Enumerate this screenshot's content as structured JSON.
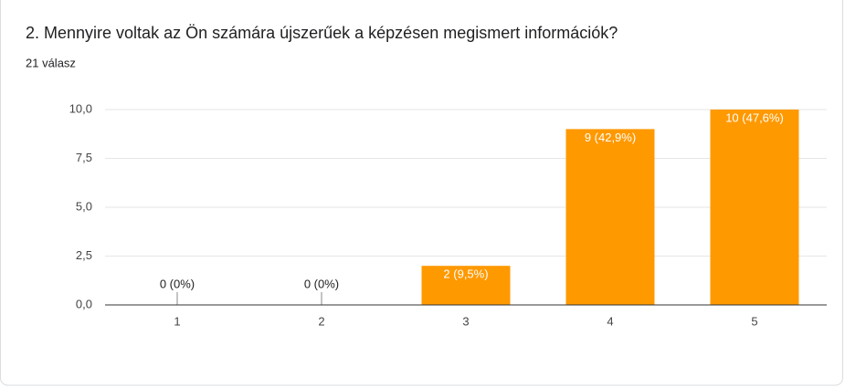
{
  "chart_data": {
    "type": "bar",
    "title": "2. Mennyire voltak az Ön számára újszerűek a képzésen megismert információk?",
    "subtitle": "21 válasz",
    "categories": [
      "1",
      "2",
      "3",
      "4",
      "5"
    ],
    "values": [
      0,
      0,
      2,
      9,
      10
    ],
    "value_labels": [
      "0 (0%)",
      "0 (0%)",
      "2 (9,5%)",
      "9 (42,9%)",
      "10 (47,6%)"
    ],
    "color": "#ff9900",
    "ylim": [
      0,
      10
    ],
    "yticks": [
      {
        "value": 0,
        "label": "0,0"
      },
      {
        "value": 2.5,
        "label": "2,5"
      },
      {
        "value": 5,
        "label": "5,0"
      },
      {
        "value": 7.5,
        "label": "7,5"
      },
      {
        "value": 10,
        "label": "10,0"
      }
    ],
    "grid": true
  }
}
